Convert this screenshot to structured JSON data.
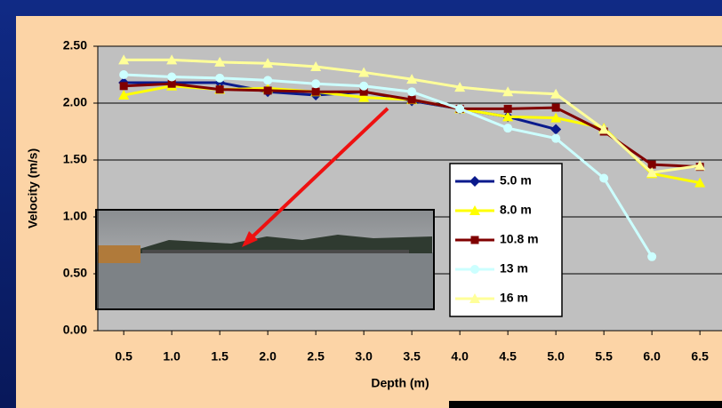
{
  "chart_data": {
    "type": "line",
    "x_label": "Depth (m)",
    "y_label": "Velocity (m/s)",
    "x": [
      0.5,
      1.0,
      1.5,
      2.0,
      2.5,
      3.0,
      3.5,
      4.0,
      4.5,
      5.0,
      5.5,
      6.0,
      6.5
    ],
    "xlim": [
      0.23,
      6.73
    ],
    "xticks": [
      {
        "value": 0.5,
        "label": "0.5"
      },
      {
        "value": 1.0,
        "label": "1.0"
      },
      {
        "value": 1.5,
        "label": "1.5"
      },
      {
        "value": 2.0,
        "label": "2.0"
      },
      {
        "value": 2.5,
        "label": "2.5"
      },
      {
        "value": 3.0,
        "label": "3.0"
      },
      {
        "value": 3.5,
        "label": "3.5"
      },
      {
        "value": 4.0,
        "label": "4.0"
      },
      {
        "value": 4.5,
        "label": "4.5"
      },
      {
        "value": 5.0,
        "label": "5.0"
      },
      {
        "value": 5.5,
        "label": "5.5"
      },
      {
        "value": 6.0,
        "label": "6.0"
      },
      {
        "value": 6.5,
        "label": "6.5"
      }
    ],
    "ylim": [
      0,
      2.5
    ],
    "yticks": [
      {
        "value": 0,
        "label": "0.00"
      },
      {
        "value": 0.5,
        "label": "0.50"
      },
      {
        "value": 1,
        "label": "1.00"
      },
      {
        "value": 1.5,
        "label": "1.50"
      },
      {
        "value": 2,
        "label": "2.00"
      },
      {
        "value": 2.5,
        "label": "2.50"
      }
    ],
    "grid": true,
    "series": [
      {
        "name": "5.0 m",
        "color": "#0a1a8c",
        "marker": "diamond",
        "values": [
          2.18,
          2.18,
          2.18,
          2.1,
          2.07,
          2.1,
          2.02,
          1.95,
          1.88,
          1.77,
          null,
          null,
          null
        ]
      },
      {
        "name": "8.0 m",
        "color": "#ffff00",
        "marker": "triangle",
        "values": [
          2.07,
          2.15,
          2.12,
          2.13,
          2.1,
          2.05,
          2.03,
          1.95,
          1.88,
          1.87,
          1.78,
          1.38,
          1.3
        ]
      },
      {
        "name": "10.8 m",
        "color": "#800000",
        "marker": "square",
        "values": [
          2.15,
          2.17,
          2.12,
          2.11,
          2.1,
          2.1,
          2.03,
          1.95,
          1.95,
          1.96,
          1.75,
          1.46,
          1.44
        ]
      },
      {
        "name": "13 m",
        "color": "#ccffff",
        "marker": "circle",
        "values": [
          2.25,
          2.23,
          2.22,
          2.2,
          2.17,
          2.15,
          2.1,
          1.95,
          1.78,
          1.69,
          1.34,
          0.65,
          null
        ]
      },
      {
        "name": "16 m",
        "color": "#ffff99",
        "marker": "triangle",
        "values": [
          2.38,
          2.38,
          2.36,
          2.35,
          2.32,
          2.27,
          2.21,
          2.14,
          2.1,
          2.08,
          1.77,
          1.39,
          1.45
        ]
      }
    ]
  }
}
